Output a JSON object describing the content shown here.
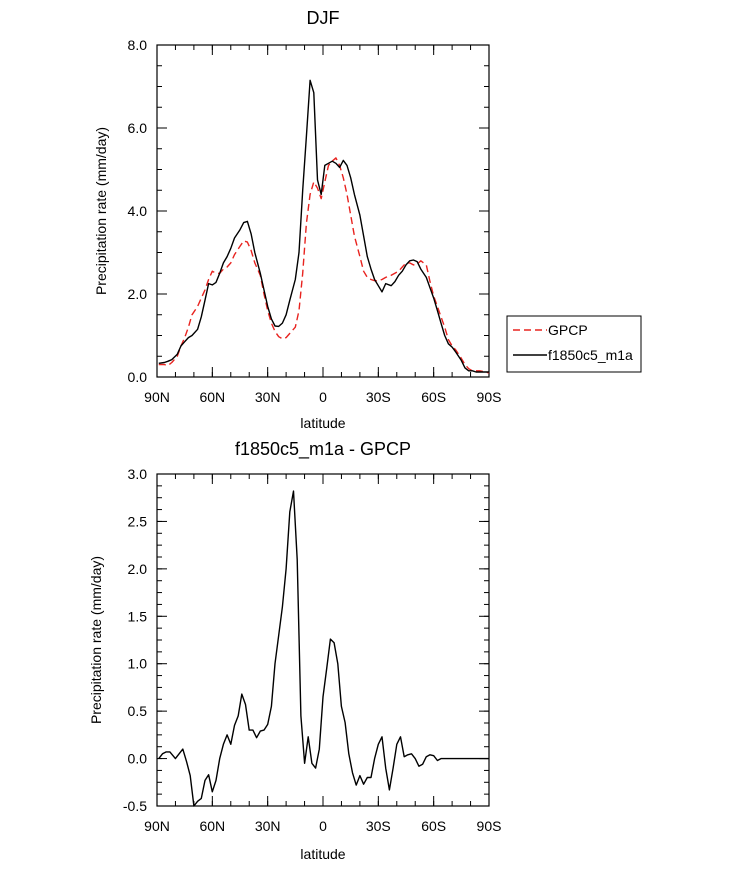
{
  "chart_data": [
    {
      "type": "line",
      "title": "DJF",
      "xlabel": "latitude",
      "ylabel": "Precipitation rate (mm/day)",
      "xlim": [
        -90,
        90
      ],
      "ylim": [
        0,
        8
      ],
      "xticks": [
        {
          "value": -90,
          "label": "90N"
        },
        {
          "value": -60,
          "label": "60N"
        },
        {
          "value": -30,
          "label": "30N"
        },
        {
          "value": 0,
          "label": "0"
        },
        {
          "value": 30,
          "label": "30S"
        },
        {
          "value": 60,
          "label": "60S"
        },
        {
          "value": 90,
          "label": "90S"
        }
      ],
      "yticks": [
        {
          "value": 0,
          "label": "0.0"
        },
        {
          "value": 2,
          "label": "2.0"
        },
        {
          "value": 4,
          "label": "4.0"
        },
        {
          "value": 6,
          "label": "6.0"
        },
        {
          "value": 8,
          "label": "8.0"
        }
      ],
      "legend": [
        {
          "name": "GPCP",
          "color": "#e8231f",
          "dash": true
        },
        {
          "name": "f1850c5_m1a",
          "color": "#000000",
          "dash": false
        }
      ],
      "series": [
        {
          "name": "GPCP",
          "color": "#e8231f",
          "dash": true,
          "x": [
            -89,
            -86,
            -84,
            -82,
            -79,
            -77,
            -75,
            -73,
            -71,
            -68,
            -66,
            -64,
            -62,
            -60,
            -58,
            -56,
            -54,
            -52,
            -50,
            -48,
            -45,
            -43,
            -41,
            -39,
            -37,
            -34,
            -32,
            -30,
            -28,
            -26,
            -24,
            -22,
            -20,
            -18,
            -15,
            -13,
            -11,
            -9,
            -7,
            -5,
            -3,
            -1,
            1,
            3,
            5,
            7,
            9,
            11,
            13,
            15,
            17,
            20,
            22,
            24,
            26,
            28,
            30,
            32,
            34,
            37,
            39,
            41,
            43,
            45,
            47,
            49,
            51,
            53,
            56,
            58,
            60,
            62,
            64,
            66,
            68,
            70,
            72,
            75,
            77,
            79,
            81,
            83,
            85,
            88,
            90
          ],
          "values": [
            0.3,
            0.3,
            0.28,
            0.35,
            0.5,
            0.75,
            0.95,
            1.2,
            1.5,
            1.7,
            1.9,
            2.1,
            2.35,
            2.55,
            2.5,
            2.5,
            2.6,
            2.65,
            2.75,
            2.95,
            3.15,
            3.28,
            3.25,
            3.05,
            2.75,
            2.45,
            2.0,
            1.6,
            1.3,
            1.1,
            0.97,
            0.92,
            0.95,
            1.05,
            1.2,
            1.6,
            2.5,
            3.7,
            4.4,
            4.7,
            4.55,
            4.3,
            4.7,
            5.1,
            5.2,
            5.28,
            5.1,
            4.8,
            4.4,
            3.9,
            3.4,
            2.9,
            2.55,
            2.4,
            2.35,
            2.32,
            2.32,
            2.35,
            2.4,
            2.45,
            2.5,
            2.55,
            2.65,
            2.75,
            2.75,
            2.7,
            2.72,
            2.8,
            2.7,
            2.3,
            1.95,
            1.7,
            1.45,
            1.2,
            0.9,
            0.75,
            0.65,
            0.45,
            0.3,
            0.2,
            0.15,
            0.15,
            0.15,
            0.12,
            0.1
          ]
        },
        {
          "name": "f1850c5_m1a",
          "color": "#000000",
          "dash": false,
          "x": [
            -89,
            -86,
            -84,
            -82,
            -79,
            -77,
            -75,
            -73,
            -71,
            -68,
            -66,
            -64,
            -62,
            -60,
            -58,
            -56,
            -54,
            -52,
            -50,
            -48,
            -45,
            -43,
            -41,
            -39,
            -37,
            -34,
            -32,
            -30,
            -28,
            -26,
            -24,
            -22,
            -20,
            -18,
            -15,
            -13,
            -11,
            -9,
            -7,
            -5,
            -3,
            -1,
            1,
            3,
            5,
            7,
            9,
            11,
            13,
            15,
            17,
            20,
            22,
            24,
            26,
            28,
            30,
            32,
            34,
            37,
            39,
            41,
            43,
            45,
            47,
            49,
            51,
            53,
            56,
            58,
            60,
            62,
            64,
            66,
            68,
            70,
            72,
            75,
            77,
            79,
            81,
            83,
            85,
            88,
            90
          ],
          "values": [
            0.33,
            0.35,
            0.38,
            0.42,
            0.55,
            0.75,
            0.85,
            0.95,
            1.0,
            1.15,
            1.45,
            1.85,
            2.25,
            2.22,
            2.28,
            2.5,
            2.75,
            2.9,
            3.1,
            3.35,
            3.55,
            3.72,
            3.75,
            3.45,
            3.0,
            2.5,
            2.1,
            1.7,
            1.4,
            1.23,
            1.22,
            1.3,
            1.5,
            1.85,
            2.35,
            3.0,
            4.5,
            5.8,
            7.15,
            6.85,
            4.75,
            4.4,
            5.1,
            5.15,
            5.2,
            5.15,
            5.05,
            5.22,
            5.1,
            4.8,
            4.4,
            3.9,
            3.4,
            2.9,
            2.6,
            2.35,
            2.2,
            2.05,
            2.25,
            2.2,
            2.3,
            2.45,
            2.55,
            2.7,
            2.8,
            2.82,
            2.78,
            2.6,
            2.4,
            2.15,
            1.9,
            1.6,
            1.3,
            1.0,
            0.8,
            0.72,
            0.6,
            0.4,
            0.22,
            0.15,
            0.15,
            0.12,
            0.12,
            0.12,
            0.12
          ]
        }
      ]
    },
    {
      "type": "line",
      "title": "f1850c5_m1a - GPCP",
      "xlabel": "latitude",
      "ylabel": "Precipitation rate (mm/day)",
      "xlim": [
        -90,
        90
      ],
      "ylim": [
        -0.5,
        3.0
      ],
      "xticks": [
        {
          "value": -90,
          "label": "90N"
        },
        {
          "value": -60,
          "label": "60N"
        },
        {
          "value": -30,
          "label": "30N"
        },
        {
          "value": 0,
          "label": "0"
        },
        {
          "value": 30,
          "label": "30S"
        },
        {
          "value": 60,
          "label": "60S"
        },
        {
          "value": 90,
          "label": "90S"
        }
      ],
      "yticks": [
        {
          "value": -0.5,
          "label": "-0.5"
        },
        {
          "value": 0.0,
          "label": "0.0"
        },
        {
          "value": 0.5,
          "label": "0.5"
        },
        {
          "value": 1.0,
          "label": "1.0"
        },
        {
          "value": 1.5,
          "label": "1.5"
        },
        {
          "value": 2.0,
          "label": "2.0"
        },
        {
          "value": 2.5,
          "label": "2.5"
        },
        {
          "value": 3.0,
          "label": "3.0"
        }
      ],
      "series": [
        {
          "name": "f1850c5_m1a - GPCP",
          "color": "#000000",
          "dash": false,
          "x": [
            -89,
            -87,
            -85,
            -83,
            -80,
            -78,
            -76,
            -74,
            -72,
            -70,
            -68,
            -66,
            -64,
            -62,
            -60,
            -58,
            -56,
            -54,
            -52,
            -50,
            -48,
            -46,
            -44,
            -42,
            -40,
            -38,
            -36,
            -34,
            -32,
            -30,
            -28,
            -26,
            -24,
            -22,
            -20,
            -18,
            -16,
            -14,
            -12,
            -10,
            -8,
            -6,
            -4,
            -2,
            0,
            2,
            4,
            6,
            8,
            10,
            12,
            14,
            16,
            18,
            20,
            22,
            24,
            26,
            28,
            30,
            32,
            34,
            36,
            38,
            40,
            42,
            44,
            46,
            48,
            50,
            52,
            54,
            56,
            58,
            60,
            62,
            64,
            66,
            68,
            70,
            72,
            74,
            76,
            78,
            80,
            82,
            84,
            86,
            88,
            90
          ],
          "values": [
            0.0,
            0.05,
            0.07,
            0.07,
            0.0,
            0.05,
            0.1,
            -0.03,
            -0.18,
            -0.5,
            -0.45,
            -0.42,
            -0.23,
            -0.17,
            -0.35,
            -0.23,
            0.0,
            0.15,
            0.25,
            0.15,
            0.35,
            0.45,
            0.68,
            0.57,
            0.3,
            0.3,
            0.22,
            0.29,
            0.3,
            0.36,
            0.55,
            1.0,
            1.3,
            1.6,
            2.0,
            2.6,
            2.82,
            2.1,
            0.45,
            -0.05,
            0.23,
            -0.05,
            -0.1,
            0.1,
            0.65,
            0.95,
            1.26,
            1.22,
            1.0,
            0.55,
            0.38,
            0.05,
            -0.15,
            -0.28,
            -0.18,
            -0.27,
            -0.2,
            -0.2,
            0.0,
            0.15,
            0.23,
            -0.1,
            -0.33,
            -0.1,
            0.15,
            0.23,
            0.02,
            0.04,
            0.05,
            0.0,
            -0.08,
            -0.06,
            0.02,
            0.04,
            0.03,
            -0.02,
            0.0,
            0.0,
            0.0,
            0.0,
            0.0,
            0.0,
            0.0,
            0.0,
            0.0,
            0.0,
            0.0,
            0.0,
            0.0,
            0.0
          ]
        }
      ]
    }
  ]
}
